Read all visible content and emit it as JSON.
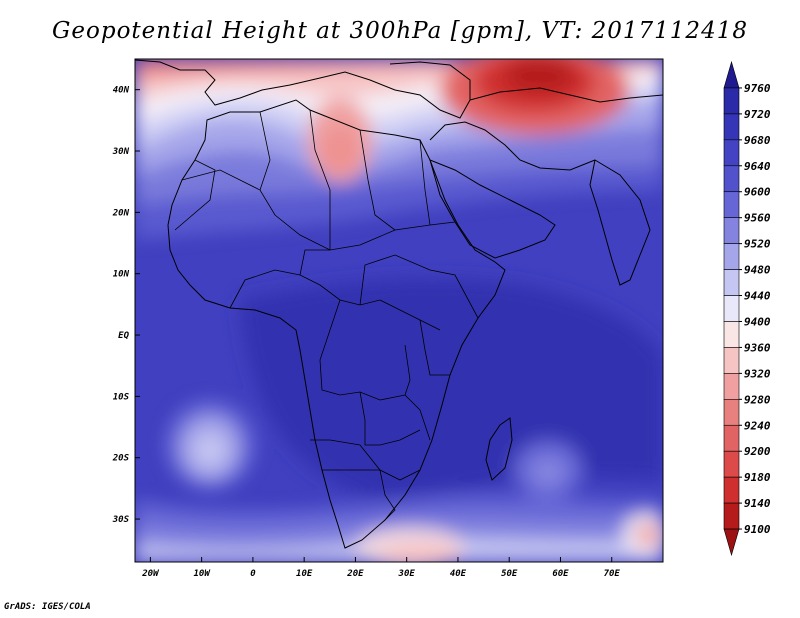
{
  "title": "Geopotential Height at 300hPa [gpm], VT: 2017112418",
  "footer": "GrADS: IGES/COLA",
  "map": {
    "lon_range": [
      -23,
      80
    ],
    "lat_range": [
      -37,
      45
    ],
    "lon_ticks": [
      {
        "value": -20,
        "label": "20W"
      },
      {
        "value": -10,
        "label": "10W"
      },
      {
        "value": 0,
        "label": "0"
      },
      {
        "value": 10,
        "label": "10E"
      },
      {
        "value": 20,
        "label": "20E"
      },
      {
        "value": 30,
        "label": "30E"
      },
      {
        "value": 40,
        "label": "40E"
      },
      {
        "value": 50,
        "label": "50E"
      },
      {
        "value": 60,
        "label": "60E"
      },
      {
        "value": 70,
        "label": "70E"
      }
    ],
    "lat_ticks": [
      {
        "value": 40,
        "label": "40N"
      },
      {
        "value": 30,
        "label": "30N"
      },
      {
        "value": 20,
        "label": "20N"
      },
      {
        "value": 10,
        "label": "10N"
      },
      {
        "value": 0,
        "label": "EQ"
      },
      {
        "value": -10,
        "label": "10S"
      },
      {
        "value": -20,
        "label": "20S"
      },
      {
        "value": -30,
        "label": "30S"
      }
    ]
  },
  "colorbar": {
    "levels": [
      "9760",
      "9720",
      "9680",
      "9640",
      "9600",
      "9560",
      "9520",
      "9480",
      "9440",
      "9400",
      "9360",
      "9320",
      "9280",
      "9240",
      "9200",
      "9180",
      "9140",
      "9100"
    ],
    "colors": [
      "#1f1a8f",
      "#2b2aa8",
      "#3535b8",
      "#4343c3",
      "#5252cc",
      "#6666d6",
      "#8484e0",
      "#a5a5ea",
      "#c6c6f2",
      "#e8e8fa",
      "#fbe6e6",
      "#f7c4c4",
      "#f0a0a0",
      "#e98080",
      "#e26363",
      "#dc4a4a",
      "#cf2f2f",
      "#b51b1b",
      "#9c1212"
    ]
  }
}
